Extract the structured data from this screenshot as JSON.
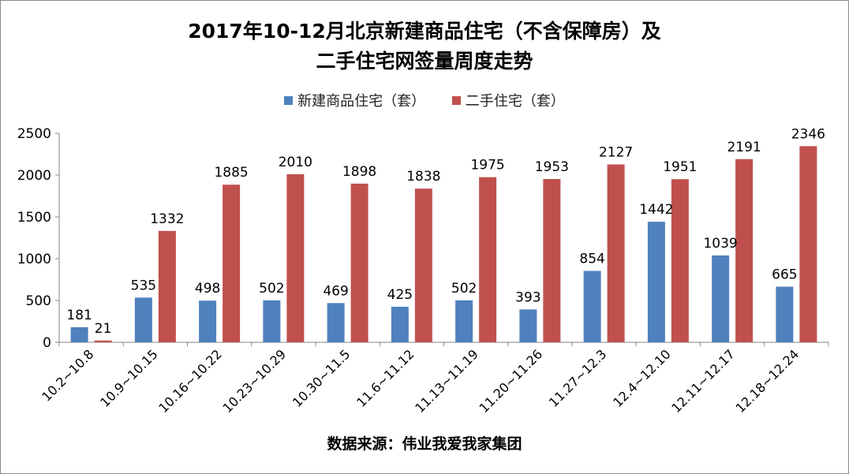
{
  "chart_data": {
    "type": "bar",
    "title_line1": "2017年10-12月北京新建商品住宅（不含保障房）及",
    "title_line2": "二手住宅网签量周度走势",
    "source": "数据来源：伟业我爱我家集团",
    "categories": [
      "10.2~10.8",
      "10.9~10.15",
      "10.16~10.22",
      "10.23~10.29",
      "10.30~11.5",
      "11.6~11.12",
      "11.13~11.19",
      "11.20~11.26",
      "11.27~12.3",
      "12.4~12.10",
      "12.11~12.17",
      "12.18~12.24"
    ],
    "series": [
      {
        "name": "新建商品住宅（套）",
        "color": "#4F81BD",
        "values": [
          181,
          535,
          498,
          502,
          469,
          425,
          502,
          393,
          854,
          1442,
          1039,
          665
        ]
      },
      {
        "name": "二手住宅（套）",
        "color": "#C0504D",
        "values": [
          21,
          1332,
          1885,
          2010,
          1898,
          1838,
          1975,
          1953,
          2127,
          1951,
          2191,
          2346
        ]
      }
    ],
    "ylim": [
      0,
      2500
    ],
    "yticks": [
      0,
      500,
      1000,
      1500,
      2000,
      2500
    ],
    "grid": false,
    "legend_position": "top"
  }
}
